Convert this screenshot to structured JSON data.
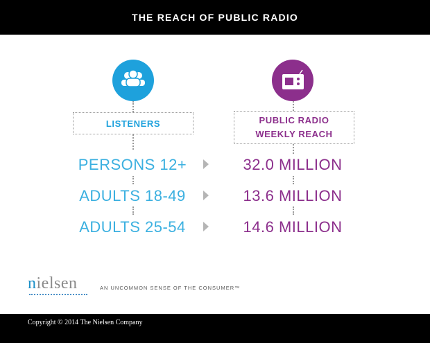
{
  "header": {
    "title": "THE REACH OF PUBLIC RADIO"
  },
  "icons": {
    "left": "listeners-group-icon",
    "right": "radio-icon"
  },
  "colors": {
    "blue": "#1ea1dc",
    "purple": "#8c2f8c",
    "black": "#000000",
    "gray": "#b5b5b5"
  },
  "columns": {
    "left_header": "LISTENERS",
    "right_header_line1": "PUBLIC RADIO",
    "right_header_line2": "WEEKLY REACH"
  },
  "rows": [
    {
      "label": "PERSONS 12+",
      "value": "32.0 MILLION"
    },
    {
      "label": "ADULTS 18-49",
      "value": "13.6 MILLION"
    },
    {
      "label": "ADULTS 25-54",
      "value": "14.6 MILLION"
    }
  ],
  "footer": {
    "logo_first": "n",
    "logo_rest": "ielsen",
    "tagline": "AN UNCOMMON SENSE OF THE CONSUMER™",
    "copyright": "Copyright © 2014 The Nielsen Company"
  }
}
